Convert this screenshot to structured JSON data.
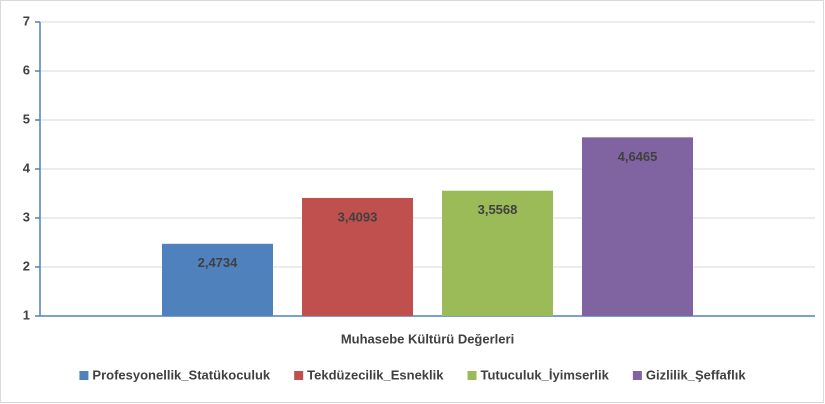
{
  "chart_data": {
    "type": "bar",
    "categories": [
      "Muhasebe Kültürü Değerleri"
    ],
    "series": [
      {
        "name": "Profesyonellik_Statükoculuk",
        "color": "#4f81bd",
        "values": [
          2.4734
        ],
        "value_labels": [
          "2,4734"
        ]
      },
      {
        "name": "Tekdüzecilik_Esneklik",
        "color": "#c0504d",
        "values": [
          3.4093
        ],
        "value_labels": [
          "3,4093"
        ]
      },
      {
        "name": "Tutuculuk_İyimserlik",
        "color": "#9bbb59",
        "values": [
          3.5568
        ],
        "value_labels": [
          "3,5568"
        ]
      },
      {
        "name": "Gizlilik_Şeffaflık",
        "color": "#8064a2",
        "values": [
          4.6465
        ],
        "value_labels": [
          "4,6465"
        ]
      }
    ],
    "ylim": [
      1,
      7
    ],
    "yticks": [
      1,
      2,
      3,
      4,
      5,
      6,
      7
    ],
    "grid": true,
    "legend": "bottom"
  }
}
